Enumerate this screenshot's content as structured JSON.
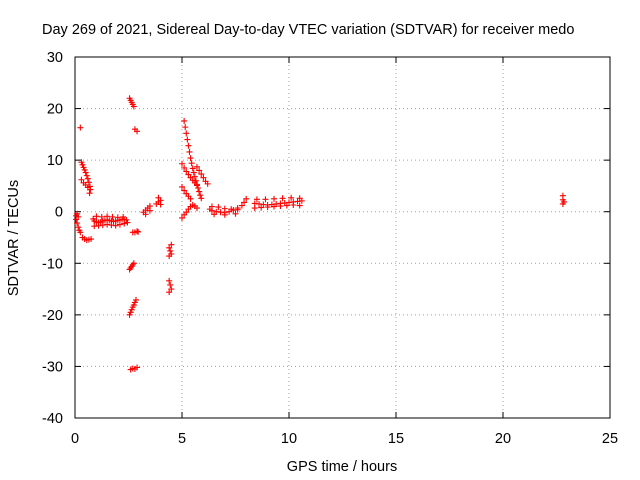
{
  "chart_data": {
    "type": "scatter",
    "title": "Day 269 of 2021, Sidereal Day-to-day VTEC variation (SDTVAR) for receiver medo",
    "xlabel": "GPS time / hours",
    "ylabel": "SDTVAR / TECUs",
    "xlim": [
      0,
      25
    ],
    "ylim": [
      -40,
      30
    ],
    "xticks": [
      0,
      5,
      10,
      15,
      20,
      25
    ],
    "yticks": [
      -40,
      -30,
      -20,
      -10,
      0,
      10,
      20,
      30
    ],
    "xtick_labels": [
      "0",
      "5",
      "10",
      "15",
      "20",
      "25"
    ],
    "ytick_labels": [
      "-40",
      "-30",
      "-20",
      "-10",
      "0",
      "10",
      "20",
      "30"
    ],
    "grid": true,
    "marker": "+",
    "color": "#ff0000",
    "series": [
      {
        "name": "sdtvar",
        "points": [
          [
            0.05,
            -1.5
          ],
          [
            0.1,
            -2.2
          ],
          [
            0.15,
            -3.0
          ],
          [
            0.2,
            -3.6
          ],
          [
            0.25,
            -4.0
          ],
          [
            0.15,
            -1.0
          ],
          [
            0.05,
            -0.8
          ],
          [
            0.1,
            -0.4
          ],
          [
            0.25,
            16.3
          ],
          [
            0.3,
            9.6
          ],
          [
            0.35,
            9.1
          ],
          [
            0.4,
            8.6
          ],
          [
            0.45,
            8.1
          ],
          [
            0.5,
            7.6
          ],
          [
            0.55,
            7.0
          ],
          [
            0.6,
            6.4
          ],
          [
            0.65,
            5.7
          ],
          [
            0.7,
            4.9
          ],
          [
            0.72,
            4.3
          ],
          [
            0.68,
            3.6
          ],
          [
            0.3,
            6.2
          ],
          [
            0.4,
            5.6
          ],
          [
            0.5,
            5.2
          ],
          [
            0.6,
            4.7
          ],
          [
            0.35,
            -5.0
          ],
          [
            0.45,
            -5.3
          ],
          [
            0.55,
            -5.5
          ],
          [
            0.65,
            -5.4
          ],
          [
            0.75,
            -5.3
          ],
          [
            0.85,
            -1.4
          ],
          [
            0.9,
            -1.8
          ],
          [
            1.0,
            -2.0
          ],
          [
            1.1,
            -2.1
          ],
          [
            1.2,
            -2.0
          ],
          [
            1.3,
            -1.8
          ],
          [
            1.4,
            -1.7
          ],
          [
            1.5,
            -1.6
          ],
          [
            1.6,
            -1.7
          ],
          [
            1.7,
            -1.8
          ],
          [
            1.8,
            -1.9
          ],
          [
            1.9,
            -1.8
          ],
          [
            2.0,
            -1.7
          ],
          [
            2.1,
            -1.6
          ],
          [
            2.2,
            -1.5
          ],
          [
            2.3,
            -1.5
          ],
          [
            2.4,
            -1.6
          ],
          [
            0.9,
            -2.8
          ],
          [
            1.1,
            -2.7
          ],
          [
            1.3,
            -2.6
          ],
          [
            1.5,
            -2.5
          ],
          [
            1.7,
            -2.6
          ],
          [
            1.9,
            -2.7
          ],
          [
            2.1,
            -2.5
          ],
          [
            2.3,
            -2.3
          ],
          [
            2.45,
            -2.1
          ],
          [
            1.0,
            -0.9
          ],
          [
            1.25,
            -1.0
          ],
          [
            1.5,
            -0.9
          ],
          [
            1.75,
            -1.0
          ],
          [
            2.0,
            -1.1
          ],
          [
            2.25,
            -1.0
          ],
          [
            2.55,
            22.0
          ],
          [
            2.6,
            21.6
          ],
          [
            2.65,
            21.2
          ],
          [
            2.7,
            20.8
          ],
          [
            2.75,
            20.4
          ],
          [
            2.7,
            -4.0
          ],
          [
            2.8,
            -4.0
          ],
          [
            2.9,
            -3.8
          ],
          [
            2.95,
            -3.9
          ],
          [
            2.55,
            -11.2
          ],
          [
            2.6,
            -10.9
          ],
          [
            2.65,
            -10.6
          ],
          [
            2.7,
            -10.3
          ],
          [
            2.75,
            -10.0
          ],
          [
            2.55,
            -20.0
          ],
          [
            2.6,
            -19.5
          ],
          [
            2.65,
            -19.0
          ],
          [
            2.7,
            -18.5
          ],
          [
            2.75,
            -18.1
          ],
          [
            2.8,
            -17.6
          ],
          [
            2.85,
            -17.1
          ],
          [
            2.6,
            -30.6
          ],
          [
            2.7,
            -30.4
          ],
          [
            2.8,
            -30.5
          ],
          [
            2.9,
            -30.2
          ],
          [
            2.8,
            16.0
          ],
          [
            2.9,
            15.6
          ],
          [
            3.2,
            -0.1
          ],
          [
            3.3,
            0.3
          ],
          [
            3.4,
            0.7
          ],
          [
            3.5,
            1.1
          ],
          [
            3.3,
            -0.5
          ],
          [
            3.5,
            0.2
          ],
          [
            3.8,
            1.5
          ],
          [
            3.9,
            1.9
          ],
          [
            4.0,
            2.2
          ],
          [
            3.9,
            2.7
          ],
          [
            4.0,
            1.4
          ],
          [
            4.4,
            -7.0
          ],
          [
            4.45,
            -7.6
          ],
          [
            4.5,
            -8.2
          ],
          [
            4.4,
            -8.6
          ],
          [
            4.5,
            -6.4
          ],
          [
            4.4,
            -13.4
          ],
          [
            4.45,
            -14.2
          ],
          [
            4.5,
            -15.0
          ],
          [
            4.4,
            -15.6
          ],
          [
            5.0,
            -1.2
          ],
          [
            5.1,
            -0.6
          ],
          [
            5.2,
            -0.1
          ],
          [
            5.3,
            0.5
          ],
          [
            5.4,
            1.0
          ],
          [
            5.5,
            1.3
          ],
          [
            5.6,
            1.1
          ],
          [
            5.7,
            0.7
          ],
          [
            5.1,
            17.6
          ],
          [
            5.15,
            16.4
          ],
          [
            5.2,
            15.2
          ],
          [
            5.25,
            14.0
          ],
          [
            5.3,
            12.8
          ],
          [
            5.35,
            11.6
          ],
          [
            5.4,
            10.4
          ],
          [
            5.45,
            9.4
          ],
          [
            5.5,
            8.4
          ],
          [
            5.55,
            7.6
          ],
          [
            5.6,
            6.8
          ],
          [
            5.65,
            6.0
          ],
          [
            5.7,
            5.3
          ],
          [
            5.75,
            4.6
          ],
          [
            5.8,
            3.9
          ],
          [
            5.85,
            3.2
          ],
          [
            5.9,
            2.6
          ],
          [
            5.0,
            9.3
          ],
          [
            5.1,
            8.5
          ],
          [
            5.2,
            7.8
          ],
          [
            5.3,
            7.2
          ],
          [
            5.4,
            6.6
          ],
          [
            5.5,
            6.1
          ],
          [
            5.6,
            5.6
          ],
          [
            5.7,
            5.1
          ],
          [
            5.0,
            4.8
          ],
          [
            5.1,
            4.1
          ],
          [
            5.2,
            3.5
          ],
          [
            5.3,
            3.0
          ],
          [
            5.4,
            2.5
          ],
          [
            5.7,
            8.7
          ],
          [
            5.8,
            8.0
          ],
          [
            5.9,
            7.3
          ],
          [
            6.0,
            6.6
          ],
          [
            6.1,
            5.9
          ],
          [
            6.2,
            5.4
          ],
          [
            6.3,
            0.5
          ],
          [
            6.4,
            0.2
          ],
          [
            6.6,
            0.0
          ],
          [
            6.8,
            -0.1
          ],
          [
            7.0,
            -0.2
          ],
          [
            7.2,
            0.0
          ],
          [
            7.4,
            0.3
          ],
          [
            7.6,
            0.7
          ],
          [
            7.8,
            1.2
          ],
          [
            7.9,
            1.8
          ],
          [
            8.0,
            2.5
          ],
          [
            6.4,
            1.0
          ],
          [
            6.7,
            0.9
          ],
          [
            7.0,
            0.6
          ],
          [
            7.3,
            0.5
          ],
          [
            7.6,
            0.4
          ],
          [
            6.5,
            -0.5
          ],
          [
            7.0,
            -0.6
          ],
          [
            7.5,
            -0.4
          ],
          [
            8.4,
            1.6
          ],
          [
            8.6,
            1.5
          ],
          [
            8.8,
            1.4
          ],
          [
            9.0,
            1.3
          ],
          [
            9.2,
            1.4
          ],
          [
            9.4,
            1.5
          ],
          [
            9.6,
            1.6
          ],
          [
            9.8,
            1.7
          ],
          [
            10.0,
            1.8
          ],
          [
            10.2,
            1.9
          ],
          [
            10.4,
            2.0
          ],
          [
            10.6,
            2.1
          ],
          [
            8.4,
            0.7
          ],
          [
            8.7,
            0.8
          ],
          [
            9.0,
            0.9
          ],
          [
            9.3,
            1.0
          ],
          [
            9.6,
            1.1
          ],
          [
            9.9,
            1.2
          ],
          [
            10.2,
            1.3
          ],
          [
            10.5,
            1.2
          ],
          [
            8.5,
            2.4
          ],
          [
            8.9,
            2.4
          ],
          [
            9.3,
            2.5
          ],
          [
            9.7,
            2.6
          ],
          [
            10.1,
            2.7
          ],
          [
            10.5,
            2.6
          ],
          [
            22.8,
            1.5
          ],
          [
            22.8,
            2.3
          ],
          [
            22.8,
            3.1
          ],
          [
            22.85,
            1.9
          ]
        ]
      }
    ]
  }
}
